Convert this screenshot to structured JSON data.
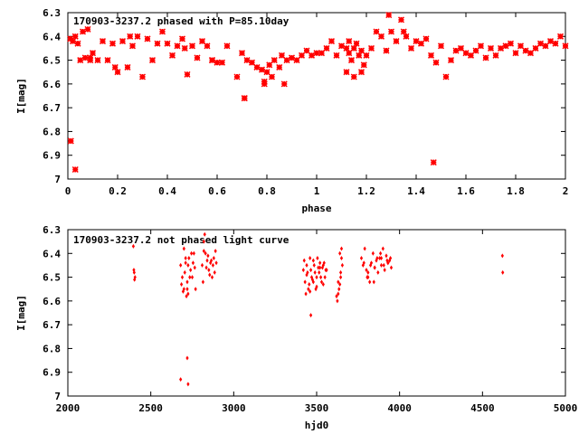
{
  "marker_color": "#ff0000",
  "chart_data": [
    {
      "type": "scatter",
      "title": "170903-3237.2 phased with P=85.10day",
      "xlabel": "phase",
      "ylabel": "I[mag]",
      "xlim": [
        0,
        2
      ],
      "ylim": [
        6.3,
        7.0
      ],
      "y_inverted": true,
      "grid": false,
      "marker": "star",
      "x_ticks": [
        "0",
        "0.2",
        "0.4",
        "0.6",
        "0.8",
        "1",
        "1.2",
        "1.4",
        "1.6",
        "1.8",
        "2"
      ],
      "y_ticks": [
        "6.3",
        "6.4",
        "6.5",
        "6.6",
        "6.7",
        "6.8",
        "6.9",
        "7"
      ],
      "x": [
        0.01,
        0.02,
        0.03,
        0.04,
        0.05,
        0.06,
        0.07,
        0.08,
        0.09,
        0.1,
        0.12,
        0.14,
        0.16,
        0.18,
        0.19,
        0.2,
        0.22,
        0.24,
        0.26,
        0.28,
        0.3,
        0.32,
        0.34,
        0.36,
        0.38,
        0.4,
        0.42,
        0.44,
        0.46,
        0.48,
        0.5,
        0.52,
        0.54,
        0.56,
        0.58,
        0.6,
        0.62,
        0.64,
        0.68,
        0.7,
        0.71,
        0.72,
        0.74,
        0.76,
        0.78,
        0.79,
        0.8,
        0.81,
        0.82,
        0.83,
        0.85,
        0.86,
        0.88,
        0.9,
        0.92,
        0.94,
        0.96,
        0.98,
        1.0,
        1.02,
        1.04,
        1.06,
        1.08,
        1.1,
        1.12,
        1.13,
        1.14,
        1.15,
        1.16,
        1.17,
        1.18,
        1.19,
        1.2,
        1.22,
        1.24,
        1.26,
        1.28,
        1.29,
        1.3,
        1.32,
        1.34,
        1.36,
        1.38,
        1.4,
        1.42,
        1.44,
        1.46,
        1.48,
        1.5,
        1.52,
        1.54,
        1.56,
        1.58,
        1.6,
        1.62,
        1.64,
        1.66,
        1.68,
        1.7,
        1.72,
        1.74,
        1.76,
        1.78,
        1.8,
        1.82,
        1.84,
        1.86,
        1.88,
        1.9,
        1.92,
        1.94,
        1.96,
        1.98,
        2.0,
        0.012,
        0.03,
        0.09,
        1.47,
        0.71,
        0.25,
        0.47,
        0.58,
        1.35,
        1.12,
        1.15,
        1.18,
        1.13,
        0.79,
        0.87
      ],
      "y": [
        6.41,
        6.42,
        6.4,
        6.43,
        6.5,
        6.38,
        6.49,
        6.37,
        6.49,
        6.47,
        6.5,
        6.42,
        6.5,
        6.43,
        6.53,
        6.55,
        6.42,
        6.53,
        6.44,
        6.4,
        6.57,
        6.41,
        6.5,
        6.43,
        6.38,
        6.43,
        6.48,
        6.44,
        6.41,
        6.56,
        6.44,
        6.49,
        6.42,
        6.44,
        6.5,
        6.51,
        6.51,
        6.44,
        6.57,
        6.47,
        6.66,
        6.5,
        6.51,
        6.53,
        6.54,
        6.6,
        6.55,
        6.52,
        6.57,
        6.5,
        6.53,
        6.48,
        6.5,
        6.49,
        6.5,
        6.48,
        6.46,
        6.48,
        6.47,
        6.47,
        6.45,
        6.42,
        6.48,
        6.44,
        6.45,
        6.47,
        6.5,
        6.45,
        6.43,
        6.48,
        6.46,
        6.52,
        6.48,
        6.45,
        6.38,
        6.4,
        6.46,
        6.31,
        6.38,
        6.42,
        6.33,
        6.4,
        6.45,
        6.42,
        6.43,
        6.41,
        6.48,
        6.51,
        6.44,
        6.57,
        6.5,
        6.46,
        6.45,
        6.47,
        6.48,
        6.46,
        6.44,
        6.49,
        6.45,
        6.48,
        6.45,
        6.44,
        6.43,
        6.47,
        6.44,
        6.46,
        6.47,
        6.45,
        6.43,
        6.44,
        6.42,
        6.43,
        6.4,
        6.44,
        6.84,
        6.96,
        6.5,
        6.93,
        6.66,
        6.4,
        6.45,
        6.5,
        6.38,
        6.55,
        6.57,
        6.55,
        6.42,
        6.59,
        6.6
      ]
    },
    {
      "type": "scatter",
      "title": "170903-3237.2 not phased light curve",
      "xlabel": "hjd0",
      "ylabel": "I[mag]",
      "xlim": [
        2000,
        5000
      ],
      "ylim": [
        6.3,
        7.0
      ],
      "y_inverted": true,
      "grid": false,
      "marker": "diamond",
      "x_ticks": [
        "2000",
        "2500",
        "3000",
        "3500",
        "4000",
        "4500",
        "5000"
      ],
      "y_ticks": [
        "6.3",
        "6.4",
        "6.5",
        "6.6",
        "6.7",
        "6.8",
        "6.9",
        "7"
      ],
      "x": [
        2395,
        2400,
        2405,
        2398,
        2402,
        2680,
        2690,
        2700,
        2710,
        2720,
        2730,
        2740,
        2750,
        2760,
        2770,
        2685,
        2695,
        2705,
        2715,
        2725,
        2735,
        2745,
        2755,
        2765,
        2700,
        2710,
        2720,
        2725,
        2810,
        2820,
        2830,
        2840,
        2850,
        2860,
        2870,
        2880,
        2890,
        2815,
        2825,
        2835,
        2845,
        2855,
        2865,
        2875,
        2885,
        2895,
        2680,
        2720,
        2725,
        2820,
        3420,
        3430,
        3440,
        3450,
        3460,
        3470,
        3480,
        3490,
        3500,
        3510,
        3520,
        3530,
        3540,
        3550,
        3560,
        3425,
        3435,
        3445,
        3455,
        3465,
        3475,
        3485,
        3495,
        3505,
        3515,
        3525,
        3535,
        3545,
        3555,
        3440,
        3460,
        3480,
        3500,
        3520,
        3540,
        3620,
        3630,
        3640,
        3650,
        3625,
        3635,
        3645,
        3655,
        3630,
        3640,
        3645,
        3650,
        3770,
        3780,
        3790,
        3800,
        3810,
        3820,
        3830,
        3840,
        3850,
        3860,
        3870,
        3880,
        3890,
        3900,
        3910,
        3920,
        3930,
        3940,
        3950,
        3785,
        3805,
        3825,
        3845,
        3865,
        3885,
        3905,
        3925,
        3945,
        3810,
        3850,
        3890,
        3930,
        4620,
        4622,
        3465
      ],
      "y": [
        6.37,
        6.48,
        6.5,
        6.47,
        6.51,
        6.45,
        6.5,
        6.55,
        6.44,
        6.52,
        6.42,
        6.47,
        6.5,
        6.4,
        6.55,
        6.53,
        6.56,
        6.48,
        6.58,
        6.45,
        6.5,
        6.4,
        6.44,
        6.46,
        6.38,
        6.42,
        6.55,
        6.57,
        6.45,
        6.35,
        6.4,
        6.43,
        6.47,
        6.44,
        6.5,
        6.42,
        6.39,
        6.52,
        6.32,
        6.46,
        6.41,
        6.49,
        6.43,
        6.45,
        6.48,
        6.44,
        6.93,
        6.84,
        6.95,
        6.39,
        6.47,
        6.52,
        6.45,
        6.55,
        6.42,
        6.5,
        6.43,
        6.48,
        6.54,
        6.46,
        6.44,
        6.52,
        6.45,
        6.5,
        6.47,
        6.43,
        6.57,
        6.48,
        6.53,
        6.47,
        6.51,
        6.45,
        6.55,
        6.42,
        6.48,
        6.5,
        6.46,
        6.44,
        6.47,
        6.49,
        6.56,
        6.52,
        6.5,
        6.46,
        6.53,
        6.58,
        6.52,
        6.4,
        6.38,
        6.6,
        6.55,
        6.5,
        6.45,
        6.57,
        6.53,
        6.48,
        6.42,
        6.42,
        6.45,
        6.38,
        6.47,
        6.5,
        6.52,
        6.44,
        6.4,
        6.46,
        6.43,
        6.48,
        6.42,
        6.45,
        6.38,
        6.47,
        6.41,
        6.44,
        6.43,
        6.46,
        6.44,
        6.5,
        6.45,
        6.52,
        6.42,
        6.4,
        6.45,
        6.43,
        6.42,
        6.48,
        6.46,
        6.42,
        6.44,
        6.41,
        6.48,
        6.66
      ]
    }
  ]
}
